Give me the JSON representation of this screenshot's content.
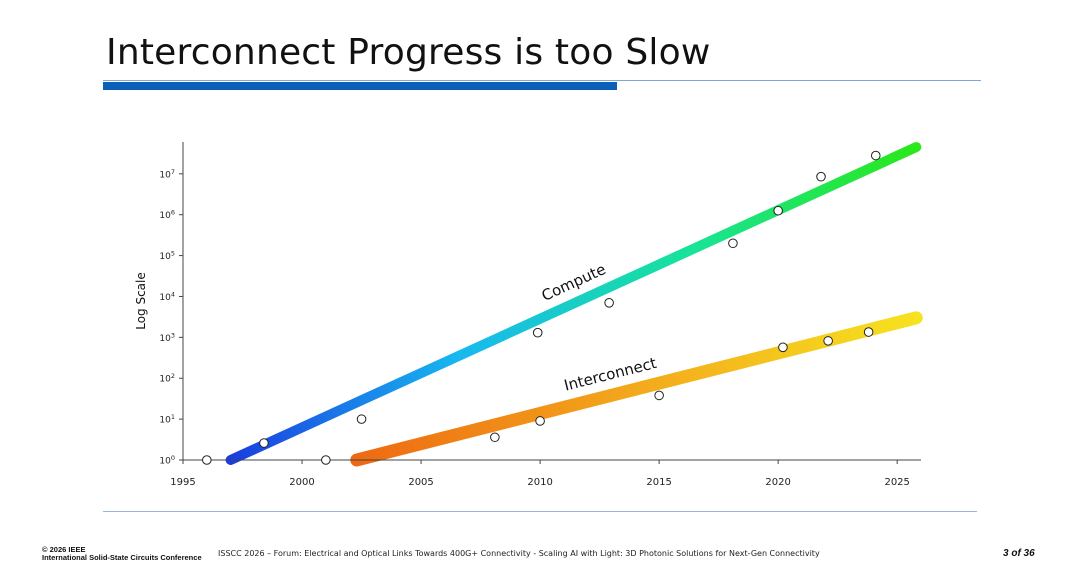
{
  "slide": {
    "title": "Interconnect Progress is too Slow",
    "footer_copyright": "© 2026 IEEE",
    "footer_org": "International Solid-State Circuits Conference",
    "footer_center": "ISSCC 2026 – Forum: Electrical and Optical Links Towards 400G+ Connectivity - Scaling AI with Light: 3D Photonic Solutions for Next-Gen Connectivity",
    "page_number": "3 of 36"
  },
  "chart_data": {
    "type": "scatter",
    "title": "",
    "xlabel": "",
    "ylabel": "Log Scale",
    "y_scale": "log",
    "xlim": [
      1995,
      2026
    ],
    "ylim": [
      1,
      60000000
    ],
    "x_ticks": [
      1995,
      2000,
      2005,
      2010,
      2015,
      2020,
      2025
    ],
    "y_ticks": [
      {
        "value": 1,
        "base": "10",
        "exp": "0"
      },
      {
        "value": 10,
        "base": "10",
        "exp": "1"
      },
      {
        "value": 100,
        "base": "10",
        "exp": "2"
      },
      {
        "value": 1000,
        "base": "10",
        "exp": "3"
      },
      {
        "value": 10000,
        "base": "10",
        "exp": "4"
      },
      {
        "value": 100000,
        "base": "10",
        "exp": "5"
      },
      {
        "value": 1000000,
        "base": "10",
        "exp": "6"
      },
      {
        "value": 10000000,
        "base": "10",
        "exp": "7"
      }
    ],
    "grid": false,
    "series": [
      {
        "name": "Compute",
        "trend": {
          "x": [
            1997,
            2025.8
          ],
          "y": [
            1,
            45000000
          ]
        },
        "colors": [
          "#1a3de0",
          "#18b8f0",
          "#17e39a",
          "#2ae81a"
        ],
        "label_at": {
          "x": 2011.5,
          "y": 17000
        },
        "points": [
          {
            "x": 1996,
            "y": 1
          },
          {
            "x": 1998.4,
            "y": 2.6
          },
          {
            "x": 2001,
            "y": 1
          },
          {
            "x": 2002.5,
            "y": 10
          },
          {
            "x": 2009.9,
            "y": 1300
          },
          {
            "x": 2012.9,
            "y": 7000
          },
          {
            "x": 2018.1,
            "y": 200000
          },
          {
            "x": 2020,
            "y": 1250000
          },
          {
            "x": 2021.8,
            "y": 8500000
          },
          {
            "x": 2024.1,
            "y": 28000000
          }
        ]
      },
      {
        "name": "Interconnect",
        "trend": {
          "x": [
            2002.3,
            2025.8
          ],
          "y": [
            1,
            3000
          ]
        },
        "colors": [
          "#ee6a12",
          "#f3a91c",
          "#f6e21f"
        ],
        "label_at": {
          "x": 2013,
          "y": 95
        },
        "points": [
          {
            "x": 2008.1,
            "y": 3.6
          },
          {
            "x": 2010,
            "y": 9
          },
          {
            "x": 2015,
            "y": 38
          },
          {
            "x": 2020.2,
            "y": 570
          },
          {
            "x": 2022.1,
            "y": 820
          },
          {
            "x": 2023.8,
            "y": 1350
          }
        ]
      }
    ]
  }
}
